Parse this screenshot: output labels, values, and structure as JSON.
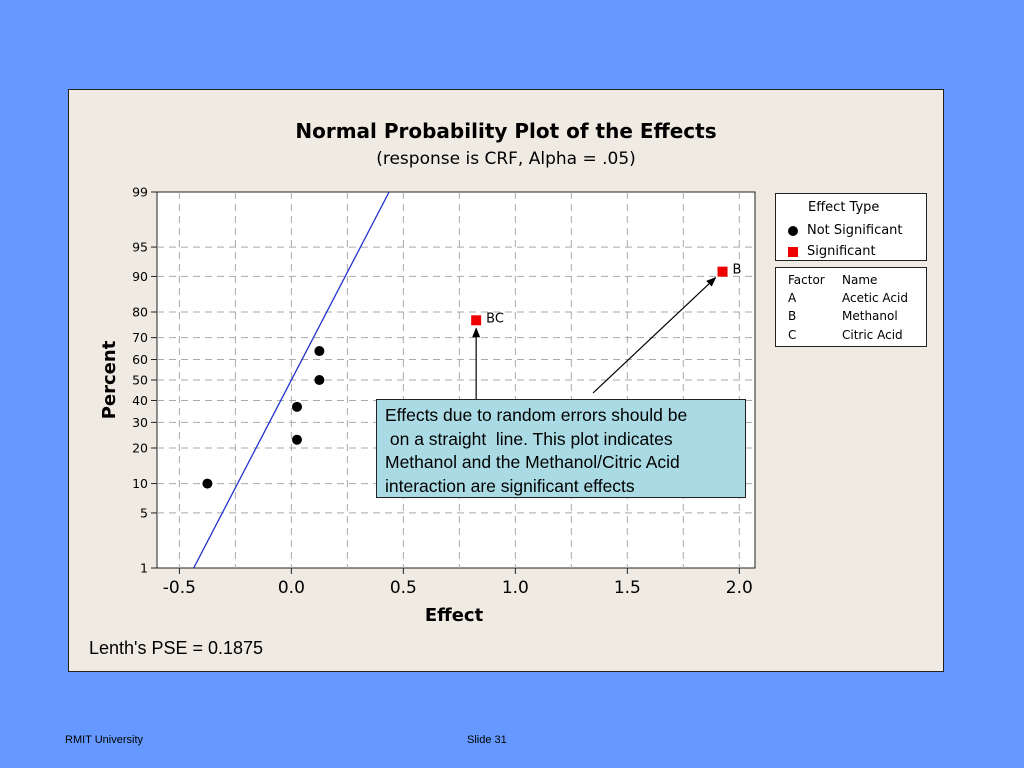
{
  "chart_data": {
    "type": "scatter",
    "title": "Normal Probability Plot of the Effects",
    "subtitle": "(response is CRF, Alpha = .05)",
    "xlabel": "Effect",
    "ylabel": "Percent",
    "xlim": [
      -0.6,
      2.07
    ],
    "ylim": [
      1,
      99
    ],
    "yscale": "normal-probability",
    "x_ticks": [
      "-0.5",
      "0.0",
      "0.5",
      "1.0",
      "1.5",
      "2.0"
    ],
    "x_tick_values": [
      -0.5,
      0.0,
      0.5,
      1.0,
      1.5,
      2.0
    ],
    "y_ticks": [
      "1",
      "5",
      "10",
      "20",
      "30",
      "40",
      "50",
      "60",
      "70",
      "80",
      "90",
      "95",
      "99"
    ],
    "y_tick_values": [
      1,
      5,
      10,
      20,
      30,
      40,
      50,
      60,
      70,
      80,
      90,
      95,
      99
    ],
    "grid": true,
    "reference_line": {
      "color": "#2233cc",
      "mean": 0.0,
      "sd": 0.1875
    },
    "series": [
      {
        "name": "Not Significant",
        "marker": "circle",
        "color": "#000000",
        "points": [
          {
            "x": -0.375,
            "y": 10
          },
          {
            "x": 0.025,
            "y": 23
          },
          {
            "x": 0.025,
            "y": 37
          },
          {
            "x": 0.125,
            "y": 50
          },
          {
            "x": 0.125,
            "y": 64
          }
        ]
      },
      {
        "name": "Significant",
        "marker": "square",
        "color": "#ee0000",
        "points": [
          {
            "x": 0.825,
            "y": 77,
            "label": "BC"
          },
          {
            "x": 1.925,
            "y": 91,
            "label": "B"
          }
        ]
      }
    ],
    "legend_title": "Effect Type",
    "legend_position": "right"
  },
  "factor_table": {
    "headers": [
      "Factor",
      "Name"
    ],
    "rows": [
      [
        "A",
        "Acetic Acid"
      ],
      [
        "B",
        "Methanol"
      ],
      [
        "C",
        "Citric Acid"
      ]
    ]
  },
  "annotation_text": "Effects due to random errors should be\n on a straight  line. This plot indicates\nMethanol and the Methanol/Citric Acid\ninteraction are significant effects",
  "lenth_pse": "Lenth's PSE = 0.1875",
  "footer": {
    "left": "RMIT University",
    "center": "Slide 31"
  },
  "colors": {
    "background": "#6699ff",
    "panel": "#efebe3",
    "annotation_bg": "#aadbe4"
  }
}
